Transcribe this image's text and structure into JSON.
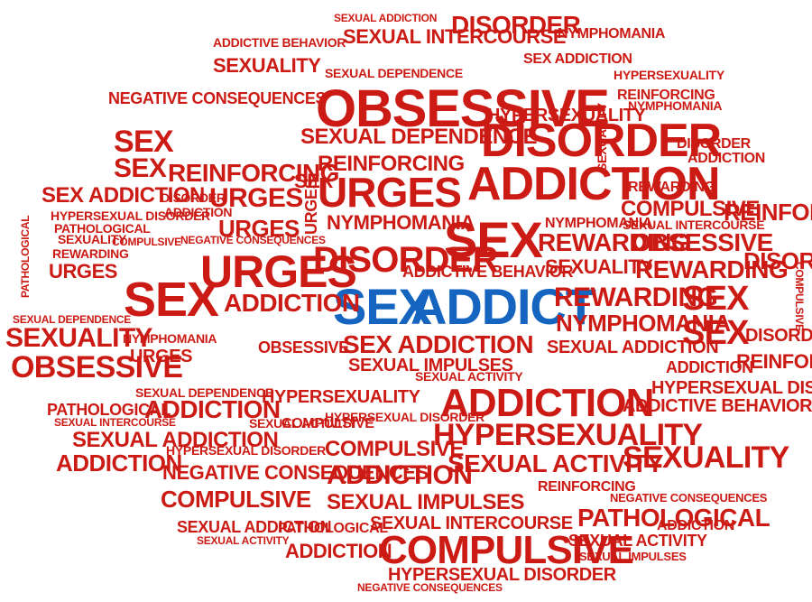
{
  "colors": {
    "word_red": "#cc1b14",
    "word_blue": "#1565c0",
    "background": "#ffffff"
  },
  "center_phrase": {
    "first": "SEX",
    "second": "ADDICT"
  },
  "words": {
    "obsessive": "OBSESSIVE",
    "disorder": "DISORDER",
    "addiction": "ADDICTION",
    "sex": "SEX",
    "urges": "URGES",
    "reinforcing": "REINFORCING",
    "sexual_dependence": "SEXUAL DEPENDENCE",
    "sex_addiction": "SEX ADDICTION",
    "hypersexuality": "HYPERSEXUALITY",
    "hypersexual_disorder": "HYPERSEXUAL DISORDER",
    "compulsive": "COMPULSIVE",
    "pathological": "PATHOLOGICAL",
    "rewarding": "REWARDING",
    "nymphomania": "NYMPHOMANIA",
    "sexuality": "SEXUALITY",
    "sexual_intercourse": "SEXUAL INTERCOURSE",
    "sexual_impulses": "SEXUAL IMPULSES",
    "sexual_activity": "SEXUAL ACTIVITY",
    "negative_consequences": "NEGATIVE CONSEQUENCES",
    "addictive_behavior": "ADDICTIVE BEHAVIOR",
    "sexual_addiction": "SEXUAL ADDICTION"
  }
}
